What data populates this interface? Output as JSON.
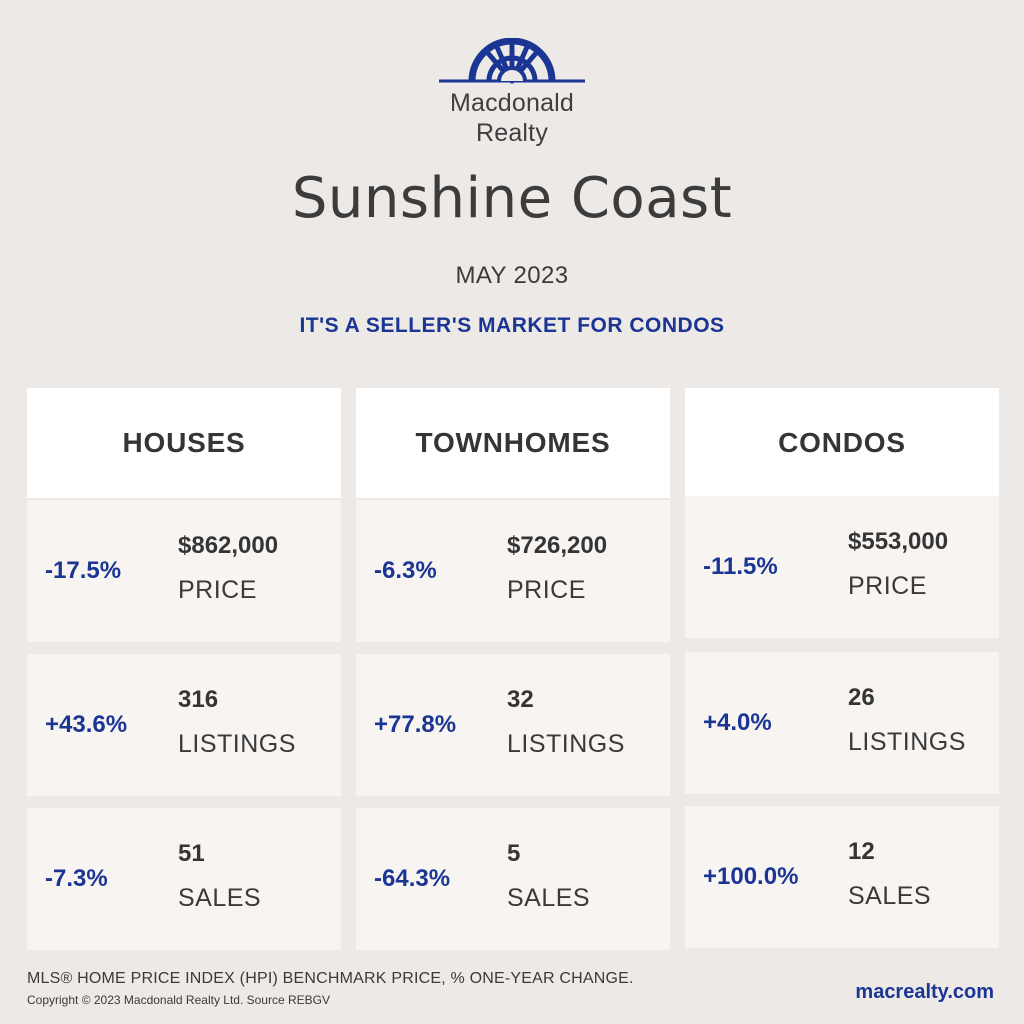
{
  "brand": {
    "line1": "Macdonald",
    "line2": "Realty",
    "logo_icon": "sunburst-arch-logo",
    "accent_color": "#1b3594"
  },
  "title": "Sunshine Coast",
  "date": "MAY 2023",
  "tagline": "IT'S A SELLER'S MARKET FOR CONDOS",
  "columns": [
    {
      "header": "HOUSES",
      "rows": [
        {
          "change": "-17.5%",
          "value": "$862,000",
          "label": "PRICE"
        },
        {
          "change": "+43.6%",
          "value": "316",
          "label": "LISTINGS"
        },
        {
          "change": "-7.3%",
          "value": "51",
          "label": "SALES"
        }
      ]
    },
    {
      "header": "TOWNHOMES",
      "rows": [
        {
          "change": "-6.3%",
          "value": "$726,200",
          "label": "PRICE"
        },
        {
          "change": "+77.8%",
          "value": "32",
          "label": "LISTINGS"
        },
        {
          "change": "-64.3%",
          "value": "5",
          "label": "SALES"
        }
      ]
    },
    {
      "header": "CONDOS",
      "rows": [
        {
          "change": "-11.5%",
          "value": "$553,000",
          "label": "PRICE"
        },
        {
          "change": "+4.0%",
          "value": "26",
          "label": "LISTINGS"
        },
        {
          "change": "+100.0%",
          "value": "12",
          "label": "SALES"
        }
      ]
    }
  ],
  "footer": {
    "note": "MLS® HOME PRICE INDEX (HPI) BENCHMARK PRICE, % ONE-YEAR CHANGE.",
    "copyright": "Copyright © 2023 Macdonald Realty Ltd. Source REBGV",
    "website": "macrealty.com"
  }
}
